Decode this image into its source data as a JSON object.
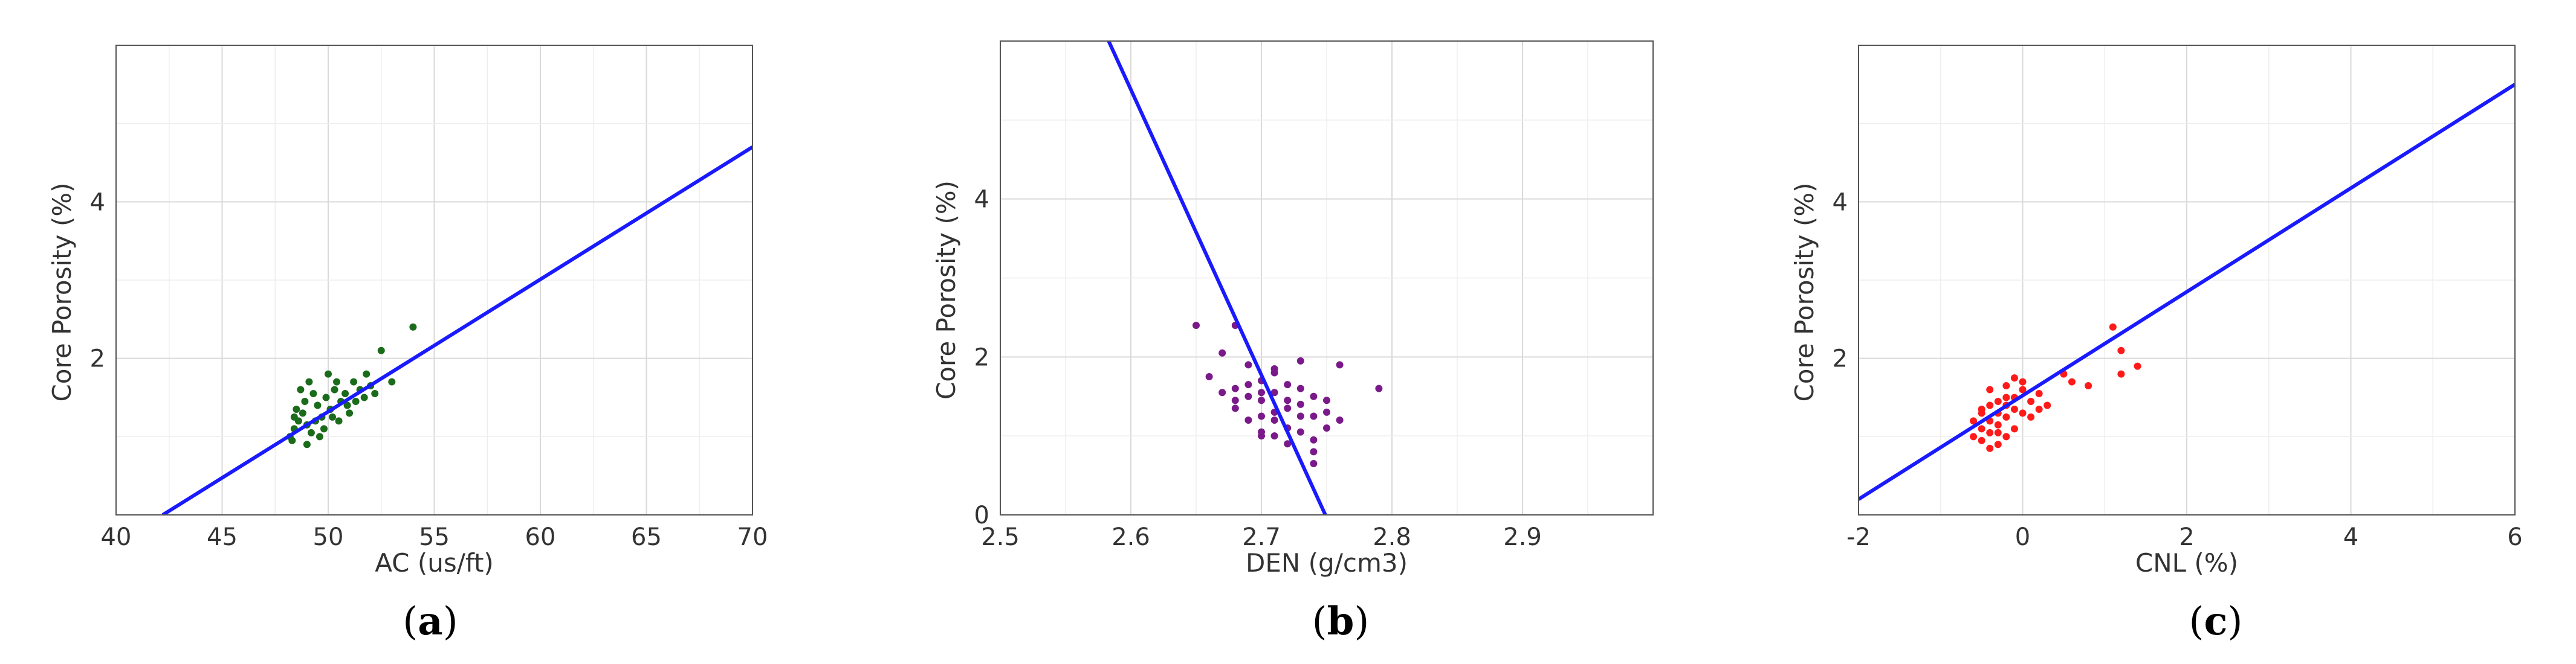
{
  "chart_data": [
    {
      "type": "scatter",
      "panel_label": "a",
      "xlabel": "AC (us/ft)",
      "ylabel": "Core Porosity (%)",
      "xlim": [
        40,
        70
      ],
      "ylim": [
        0,
        6
      ],
      "x_ticks": [
        40,
        45,
        50,
        55,
        60,
        65,
        70
      ],
      "y_ticks": [
        2,
        4
      ],
      "grid": true,
      "point_color": "#1a6b1a",
      "line_color": "#1a1aff",
      "fit_line": {
        "x": [
          42.2,
          70
        ],
        "y": [
          0,
          4.7
        ]
      },
      "points": [
        [
          48.2,
          1.0
        ],
        [
          48.4,
          1.1
        ],
        [
          48.6,
          1.2
        ],
        [
          48.3,
          0.95
        ],
        [
          48.8,
          1.3
        ],
        [
          49.0,
          1.15
        ],
        [
          49.2,
          1.05
        ],
        [
          49.5,
          1.4
        ],
        [
          49.7,
          1.25
        ],
        [
          49.9,
          1.5
        ],
        [
          50.1,
          1.35
        ],
        [
          50.3,
          1.6
        ],
        [
          50.6,
          1.45
        ],
        [
          50.8,
          1.55
        ],
        [
          51.0,
          1.3
        ],
        [
          51.2,
          1.7
        ],
        [
          51.5,
          1.6
        ],
        [
          51.7,
          1.5
        ],
        [
          52.0,
          1.65
        ],
        [
          52.5,
          2.1
        ],
        [
          53.0,
          1.7
        ],
        [
          54.0,
          2.4
        ],
        [
          48.5,
          1.35
        ],
        [
          49.0,
          0.9
        ],
        [
          49.4,
          1.2
        ],
        [
          49.8,
          1.1
        ],
        [
          50.2,
          1.25
        ],
        [
          50.5,
          1.2
        ],
        [
          50.9,
          1.4
        ],
        [
          51.3,
          1.45
        ],
        [
          48.9,
          1.45
        ],
        [
          49.3,
          1.55
        ],
        [
          49.6,
          1.0
        ],
        [
          50.0,
          1.8
        ],
        [
          50.4,
          1.7
        ],
        [
          48.7,
          1.6
        ],
        [
          49.1,
          1.7
        ],
        [
          51.8,
          1.8
        ],
        [
          52.2,
          1.55
        ],
        [
          48.4,
          1.25
        ]
      ]
    },
    {
      "type": "scatter",
      "panel_label": "b",
      "xlabel": "DEN (g/cm3)",
      "ylabel": "Core Porosity (%)",
      "xlim": [
        2.5,
        3.0
      ],
      "ylim": [
        0,
        6
      ],
      "x_ticks": [
        2.5,
        2.6,
        2.7,
        2.8,
        2.9
      ],
      "y_ticks": [
        0,
        2,
        4
      ],
      "grid": true,
      "point_color": "#7a1a8a",
      "line_color": "#1a1aff",
      "fit_line": {
        "x": [
          2.583,
          2.749
        ],
        "y": [
          6,
          0
        ]
      },
      "points": [
        [
          2.65,
          2.4
        ],
        [
          2.67,
          2.05
        ],
        [
          2.68,
          2.4
        ],
        [
          2.69,
          1.9
        ],
        [
          2.66,
          1.75
        ],
        [
          2.68,
          1.6
        ],
        [
          2.7,
          1.55
        ],
        [
          2.71,
          1.8
        ],
        [
          2.72,
          1.45
        ],
        [
          2.73,
          1.95
        ],
        [
          2.74,
          1.5
        ],
        [
          2.75,
          1.3
        ],
        [
          2.76,
          1.9
        ],
        [
          2.79,
          1.6
        ],
        [
          2.69,
          1.2
        ],
        [
          2.7,
          1.0
        ],
        [
          2.71,
          1.3
        ],
        [
          2.72,
          1.1
        ],
        [
          2.73,
          1.25
        ],
        [
          2.74,
          0.95
        ],
        [
          2.75,
          1.1
        ],
        [
          2.7,
          1.45
        ],
        [
          2.71,
          1.55
        ],
        [
          2.72,
          1.65
        ],
        [
          2.73,
          1.4
        ],
        [
          2.74,
          1.25
        ],
        [
          2.68,
          1.35
        ],
        [
          2.69,
          1.5
        ],
        [
          2.7,
          1.7
        ],
        [
          2.71,
          1.2
        ],
        [
          2.72,
          0.9
        ],
        [
          2.73,
          1.05
        ],
        [
          2.74,
          0.8
        ],
        [
          2.67,
          1.55
        ],
        [
          2.68,
          1.45
        ],
        [
          2.69,
          1.65
        ],
        [
          2.7,
          1.25
        ],
        [
          2.71,
          1.0
        ],
        [
          2.72,
          1.35
        ],
        [
          2.75,
          1.45
        ],
        [
          2.76,
          1.2
        ],
        [
          2.74,
          0.65
        ],
        [
          2.73,
          1.6
        ],
        [
          2.71,
          1.85
        ],
        [
          2.7,
          1.05
        ]
      ]
    },
    {
      "type": "scatter",
      "panel_label": "c",
      "xlabel": "CNL (%)",
      "ylabel": "Core Porosity (%)",
      "xlim": [
        -2,
        6
      ],
      "ylim": [
        0,
        6
      ],
      "x_ticks": [
        -2,
        0,
        2,
        4,
        6
      ],
      "y_ticks": [
        2,
        4
      ],
      "grid": true,
      "point_color": "#ff1a1a",
      "line_color": "#1a1aff",
      "fit_line": {
        "x": [
          -2,
          6
        ],
        "y": [
          0.2,
          5.5
        ]
      },
      "points": [
        [
          -0.6,
          1.0
        ],
        [
          -0.5,
          1.1
        ],
        [
          -0.4,
          1.2
        ],
        [
          -0.5,
          0.95
        ],
        [
          -0.3,
          1.3
        ],
        [
          -0.4,
          1.05
        ],
        [
          -0.2,
          1.4
        ],
        [
          -0.3,
          1.15
        ],
        [
          -0.1,
          1.5
        ],
        [
          -0.2,
          1.25
        ],
        [
          0.0,
          1.6
        ],
        [
          -0.1,
          1.35
        ],
        [
          0.1,
          1.45
        ],
        [
          0.2,
          1.55
        ],
        [
          0.0,
          1.7
        ],
        [
          -0.2,
          1.65
        ],
        [
          -0.4,
          1.4
        ],
        [
          -0.5,
          1.3
        ],
        [
          -0.6,
          1.2
        ],
        [
          -0.3,
          0.9
        ],
        [
          -0.2,
          1.0
        ],
        [
          -0.1,
          1.1
        ],
        [
          0.3,
          1.4
        ],
        [
          0.5,
          1.8
        ],
        [
          0.6,
          1.7
        ],
        [
          0.8,
          1.65
        ],
        [
          1.1,
          2.4
        ],
        [
          1.2,
          2.1
        ],
        [
          1.2,
          1.8
        ],
        [
          1.4,
          1.9
        ],
        [
          -0.4,
          1.6
        ],
        [
          -0.3,
          1.45
        ],
        [
          -0.1,
          1.75
        ],
        [
          0.1,
          1.25
        ],
        [
          -0.5,
          1.35
        ],
        [
          -0.2,
          1.5
        ],
        [
          0.0,
          1.3
        ],
        [
          -0.3,
          1.05
        ],
        [
          -0.4,
          0.85
        ],
        [
          0.2,
          1.35
        ]
      ]
    }
  ]
}
